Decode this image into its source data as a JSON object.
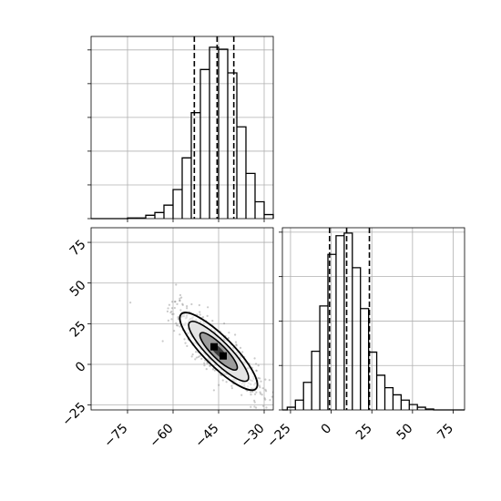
{
  "chart_data": [
    {
      "panel": "marginal-x",
      "type": "histogram",
      "variable_range": [
        -87,
        -27
      ],
      "bins": [
        {
          "x0": -75,
          "x1": -72,
          "count": 1
        },
        {
          "x0": -72,
          "x1": -69,
          "count": 1
        },
        {
          "x0": -69,
          "x1": -66,
          "count": 5
        },
        {
          "x0": -66,
          "x1": -63,
          "count": 9
        },
        {
          "x0": -63,
          "x1": -60,
          "count": 20
        },
        {
          "x0": -60,
          "x1": -57,
          "count": 43
        },
        {
          "x0": -57,
          "x1": -54,
          "count": 90
        },
        {
          "x0": -54,
          "x1": -51,
          "count": 157
        },
        {
          "x0": -51,
          "x1": -48,
          "count": 221
        },
        {
          "x0": -48,
          "x1": -45,
          "count": 254
        },
        {
          "x0": -45,
          "x1": -42,
          "count": 251
        },
        {
          "x0": -42,
          "x1": -39,
          "count": 216
        },
        {
          "x0": -39,
          "x1": -36,
          "count": 136
        },
        {
          "x0": -36,
          "x1": -33,
          "count": 67
        },
        {
          "x0": -33,
          "x1": -30,
          "count": 25
        },
        {
          "x0": -30,
          "x1": -27,
          "count": 6
        }
      ],
      "ylim": [
        0,
        270
      ],
      "quantile_lines": [
        -53,
        -45.5,
        -40
      ],
      "grid": true
    },
    {
      "panel": "marginal-y",
      "type": "histogram",
      "variable_range": [
        -30,
        82
      ],
      "bins": [
        {
          "x0": -27,
          "x1": -22,
          "count": 3
        },
        {
          "x0": -22,
          "x1": -17,
          "count": 11
        },
        {
          "x0": -17,
          "x1": -12,
          "count": 31
        },
        {
          "x0": -12,
          "x1": -7,
          "count": 66
        },
        {
          "x0": -7,
          "x1": -2,
          "count": 117
        },
        {
          "x0": -2,
          "x1": 3,
          "count": 175
        },
        {
          "x0": 3,
          "x1": 8,
          "count": 196
        },
        {
          "x0": 8,
          "x1": 13,
          "count": 199
        },
        {
          "x0": 13,
          "x1": 18,
          "count": 160
        },
        {
          "x0": 18,
          "x1": 23,
          "count": 114
        },
        {
          "x0": 23,
          "x1": 28,
          "count": 65
        },
        {
          "x0": 28,
          "x1": 33,
          "count": 39
        },
        {
          "x0": 33,
          "x1": 38,
          "count": 25
        },
        {
          "x0": 38,
          "x1": 43,
          "count": 17
        },
        {
          "x0": 43,
          "x1": 48,
          "count": 11
        },
        {
          "x0": 48,
          "x1": 53,
          "count": 6
        },
        {
          "x0": 53,
          "x1": 58,
          "count": 3
        },
        {
          "x0": 58,
          "x1": 63,
          "count": 1
        }
      ],
      "ylim": [
        0,
        205
      ],
      "quantile_lines": [
        -1,
        9.5,
        23.5
      ],
      "xticks": [
        -25,
        0,
        25,
        50,
        75
      ],
      "grid": true
    },
    {
      "panel": "joint",
      "type": "scatter-density",
      "xlim": [
        -87,
        -27
      ],
      "ylim": [
        -28,
        84
      ],
      "xticks": [
        -75,
        -60,
        -45,
        -30
      ],
      "yticks": [
        -25,
        0,
        25,
        50,
        75
      ],
      "center": [
        -45,
        8
      ],
      "density_levels": [
        "outer contour",
        "middle contour",
        "inner contour",
        "peak"
      ],
      "grid": true
    }
  ]
}
